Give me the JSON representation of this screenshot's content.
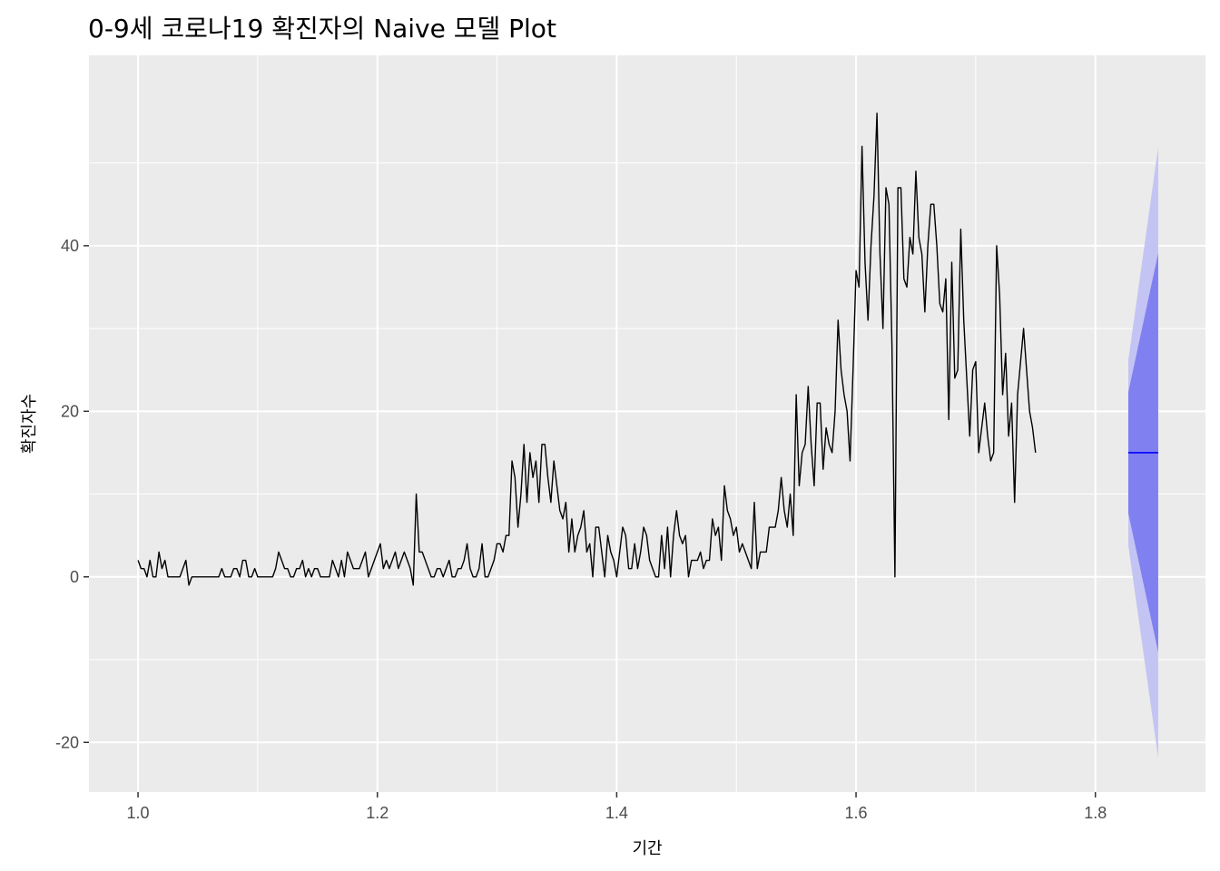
{
  "chart_data": {
    "type": "line",
    "title": "0-9세 코로나19 확진자의 Naive 모델 Plot",
    "xlabel": "기간",
    "ylabel": "확진자수",
    "xlim": [
      0.959,
      1.892
    ],
    "ylim": [
      -26,
      63
    ],
    "x_ticks": [
      1.0,
      1.2,
      1.4,
      1.6,
      1.8
    ],
    "x_tick_labels": [
      "1.0",
      "1.2",
      "1.4",
      "1.6",
      "1.8"
    ],
    "y_ticks": [
      -20,
      0,
      20,
      40
    ],
    "y_tick_labels": [
      "-20",
      "0",
      "20",
      "40"
    ],
    "grid": true,
    "legend": "none",
    "colors": {
      "panel": "#ebebeb",
      "grid": "#ffffff",
      "observed": "#000000",
      "forecast": "#0000ff",
      "pi80": "#8080f0",
      "pi95": "#c4c4f4"
    },
    "observed": {
      "x_start": 1.0,
      "x_step": 0.0025,
      "values": [
        2,
        1,
        1,
        0,
        2,
        0,
        0,
        3,
        1,
        2,
        0,
        0,
        0,
        0,
        0,
        1,
        2,
        -1,
        0,
        0,
        0,
        0,
        0,
        0,
        0,
        0,
        0,
        0,
        1,
        0,
        0,
        0,
        1,
        1,
        0,
        2,
        2,
        0,
        0,
        1,
        0,
        0,
        0,
        0,
        0,
        0,
        1,
        3,
        2,
        1,
        1,
        0,
        0,
        1,
        1,
        2,
        0,
        1,
        0,
        1,
        1,
        0,
        0,
        0,
        0,
        2,
        1,
        0,
        2,
        0,
        3,
        2,
        1,
        1,
        1,
        2,
        3,
        0,
        1,
        2,
        3,
        4,
        1,
        2,
        1,
        2,
        3,
        1,
        2,
        3,
        2,
        1,
        -1,
        10,
        3,
        3,
        2,
        1,
        0,
        0,
        1,
        1,
        0,
        1,
        2,
        0,
        0,
        1,
        1,
        2,
        4,
        1,
        0,
        0,
        1,
        4,
        0,
        0,
        1,
        2,
        4,
        4,
        3,
        5,
        5,
        14,
        12,
        6,
        10,
        16,
        9,
        15,
        12,
        14,
        9,
        16,
        16,
        12,
        9,
        14,
        11,
        8,
        7,
        9,
        3,
        7,
        3,
        5,
        6,
        8,
        3,
        4,
        0,
        6,
        6,
        3,
        0,
        5,
        3,
        2,
        0,
        3,
        6,
        5,
        1,
        1,
        4,
        1,
        3,
        6,
        5,
        2,
        1,
        0,
        0,
        5,
        1,
        6,
        0,
        5,
        8,
        5,
        4,
        5,
        0,
        2,
        2,
        2,
        3,
        1,
        2,
        2,
        7,
        5,
        6,
        2,
        11,
        8,
        7,
        5,
        6,
        3,
        4,
        3,
        2,
        1,
        9,
        1,
        3,
        3,
        3,
        6,
        6,
        6,
        8,
        12,
        8,
        6,
        10,
        5,
        22,
        11,
        15,
        16,
        23,
        16,
        11,
        21,
        21,
        13,
        18,
        16,
        15,
        20,
        31,
        25,
        22,
        20,
        14,
        25,
        37,
        35,
        52,
        38,
        31,
        40,
        46,
        56,
        39,
        30,
        47,
        45,
        28,
        0,
        47,
        47,
        36,
        35,
        41,
        39,
        49,
        41,
        39,
        32,
        40,
        45,
        45,
        40,
        33,
        32,
        36,
        19,
        38,
        24,
        25,
        42,
        31,
        24,
        17,
        25,
        26,
        15,
        18,
        21,
        17,
        14,
        15,
        40,
        34,
        22,
        27,
        17,
        21,
        9,
        22,
        26,
        30,
        25,
        20,
        18,
        15
      ]
    },
    "forecast": {
      "x_start": 1.8275,
      "x_end": 1.8525,
      "point": 15,
      "lo80_start": 7.7,
      "lo80_end": -9.1,
      "hi80_start": 22.3,
      "hi80_end": 39.1,
      "lo95_start": 3.8,
      "lo95_end": -21.9,
      "hi95_start": 26.2,
      "hi95_end": 51.9
    }
  }
}
